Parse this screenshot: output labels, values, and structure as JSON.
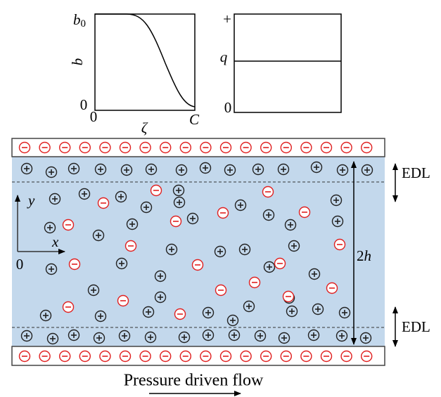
{
  "left_plot": {
    "y_top": "b",
    "y_top_sub": "0",
    "y_label": "b",
    "y_zero": "0",
    "x_zero": "0",
    "x_label": "ζ",
    "x_end": "C"
  },
  "right_plot": {
    "y_top": "+",
    "y_mid": "q",
    "y_zero": "0"
  },
  "channel": {
    "axis_y": "y",
    "axis_x": "x",
    "origin": "0",
    "height_coef": "2",
    "height_var": "h",
    "edl": [
      "EDL",
      "EDL"
    ]
  },
  "caption": "Pressure driven flow"
}
